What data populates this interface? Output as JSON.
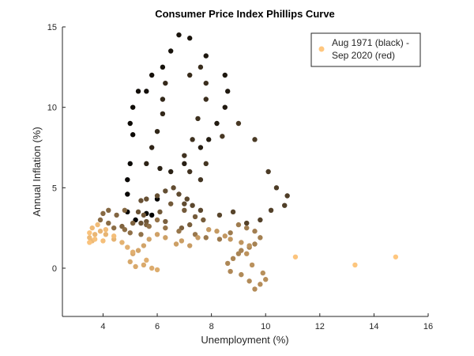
{
  "chart_data": {
    "type": "scatter",
    "title": "Consumer Price Index Phillips Curve",
    "xlabel": "Unemployment (%)",
    "ylabel": "Annual Inflation (%)",
    "xlim": [
      2.5,
      16
    ],
    "ylim": [
      -3,
      15
    ],
    "xticks": [
      4,
      6,
      8,
      10,
      12,
      14,
      16
    ],
    "xtick_labels": [
      "4",
      "6",
      "8",
      "10",
      "12",
      "14",
      "16"
    ],
    "yticks": [
      0,
      5,
      10,
      15
    ],
    "ytick_labels": [
      "0",
      "5",
      "10",
      "15"
    ],
    "grid": false,
    "legend_position": "top-right",
    "legend_label": "Aug 1971 (black) -\nSep 2020 (red)",
    "color_start": "#000000",
    "color_end": "#ffc77f",
    "series": [
      {
        "points": [
          [
            6.0,
            4.3
          ],
          [
            5.8,
            3.3
          ],
          [
            5.6,
            3.4
          ],
          [
            5.2,
            3.0
          ],
          [
            4.9,
            3.5
          ],
          [
            4.9,
            4.6
          ],
          [
            4.9,
            5.5
          ],
          [
            5.0,
            6.5
          ],
          [
            5.1,
            8.3
          ],
          [
            5.0,
            9.0
          ],
          [
            5.1,
            10.0
          ],
          [
            5.3,
            11.0
          ],
          [
            5.6,
            11.0
          ],
          [
            5.8,
            12.0
          ],
          [
            6.2,
            12.5
          ],
          [
            6.5,
            13.5
          ],
          [
            6.8,
            14.5
          ],
          [
            7.2,
            14.3
          ],
          [
            7.8,
            13.2
          ],
          [
            8.5,
            12.0
          ],
          [
            8.6,
            11.0
          ],
          [
            8.5,
            10.0
          ],
          [
            8.2,
            9.0
          ],
          [
            7.9,
            8.0
          ],
          [
            7.6,
            7.5
          ],
          [
            7.0,
            6.5
          ],
          [
            6.5,
            6.0
          ],
          [
            6.1,
            6.2
          ],
          [
            5.6,
            6.5
          ],
          [
            5.8,
            7.5
          ],
          [
            6.0,
            8.5
          ],
          [
            6.2,
            9.6
          ],
          [
            6.2,
            10.5
          ],
          [
            6.3,
            11.5
          ],
          [
            7.2,
            12.0
          ],
          [
            7.6,
            12.5
          ],
          [
            7.8,
            11.5
          ],
          [
            7.8,
            10.5
          ],
          [
            7.5,
            9.3
          ],
          [
            7.3,
            8.0
          ],
          [
            7.0,
            7.0
          ],
          [
            7.2,
            6.0
          ],
          [
            7.6,
            5.5
          ],
          [
            7.8,
            6.5
          ],
          [
            8.4,
            8.2
          ],
          [
            9.0,
            9.0
          ],
          [
            9.6,
            8.0
          ],
          [
            10.1,
            6.0
          ],
          [
            10.4,
            5.0
          ],
          [
            10.8,
            4.5
          ],
          [
            10.7,
            3.9
          ],
          [
            10.2,
            3.6
          ],
          [
            9.8,
            3.0
          ],
          [
            9.3,
            2.8
          ],
          [
            8.8,
            3.5
          ],
          [
            8.3,
            3.3
          ],
          [
            7.6,
            3.6
          ],
          [
            7.3,
            3.9
          ],
          [
            7.1,
            4.3
          ],
          [
            7.0,
            4.0
          ],
          [
            6.8,
            4.6
          ],
          [
            6.6,
            5.0
          ],
          [
            6.3,
            4.8
          ],
          [
            6.0,
            4.5
          ],
          [
            5.6,
            4.3
          ],
          [
            5.4,
            4.2
          ],
          [
            5.3,
            3.5
          ],
          [
            5.4,
            2.8
          ],
          [
            5.6,
            2.9
          ],
          [
            5.5,
            3.3
          ],
          [
            6.1,
            3.5
          ],
          [
            6.5,
            4.0
          ],
          [
            7.0,
            3.6
          ],
          [
            7.4,
            3.2
          ],
          [
            7.7,
            3.0
          ],
          [
            7.2,
            2.7
          ],
          [
            6.9,
            2.5
          ],
          [
            6.3,
            2.9
          ],
          [
            5.6,
            2.7
          ],
          [
            5.1,
            2.8
          ],
          [
            4.7,
            2.6
          ],
          [
            4.5,
            3.3
          ],
          [
            4.8,
            3.6
          ],
          [
            4.2,
            3.6
          ],
          [
            4.0,
            3.4
          ],
          [
            3.9,
            3.0
          ],
          [
            4.2,
            2.8
          ],
          [
            4.4,
            2.5
          ],
          [
            4.8,
            2.4
          ],
          [
            5.0,
            2.2
          ],
          [
            5.4,
            2.1
          ],
          [
            5.7,
            2.6
          ],
          [
            6.0,
            3.0
          ],
          [
            6.3,
            2.5
          ],
          [
            6.8,
            2.3
          ],
          [
            7.4,
            2.1
          ],
          [
            7.8,
            1.9
          ],
          [
            8.3,
            1.8
          ],
          [
            8.7,
            2.2
          ],
          [
            9.0,
            2.7
          ],
          [
            9.3,
            2.5
          ],
          [
            9.6,
            2.3
          ],
          [
            9.8,
            1.9
          ],
          [
            9.6,
            1.5
          ],
          [
            9.4,
            1.3
          ],
          [
            9.1,
            1.1
          ],
          [
            9.0,
            0.9
          ],
          [
            8.8,
            0.6
          ],
          [
            8.6,
            0.3
          ],
          [
            8.7,
            -0.2
          ],
          [
            9.1,
            -0.4
          ],
          [
            9.4,
            -0.8
          ],
          [
            9.6,
            -1.3
          ],
          [
            9.8,
            -1.0
          ],
          [
            10.0,
            -0.7
          ],
          [
            9.9,
            -0.3
          ],
          [
            9.5,
            0.2
          ],
          [
            9.3,
            0.9
          ],
          [
            9.4,
            1.4
          ],
          [
            9.1,
            1.6
          ],
          [
            8.7,
            1.8
          ],
          [
            8.5,
            2.0
          ],
          [
            8.2,
            2.3
          ],
          [
            7.9,
            2.4
          ],
          [
            7.5,
            1.9
          ],
          [
            7.2,
            1.4
          ],
          [
            6.9,
            1.7
          ],
          [
            6.7,
            1.5
          ],
          [
            6.3,
            1.9
          ],
          [
            6.0,
            2.1
          ],
          [
            5.7,
            1.8
          ],
          [
            5.5,
            1.4
          ],
          [
            5.3,
            1.1
          ],
          [
            5.1,
            0.9
          ],
          [
            5.0,
            0.4
          ],
          [
            5.2,
            0.1
          ],
          [
            5.5,
            0.2
          ],
          [
            5.8,
            0.0
          ],
          [
            6.0,
            -0.1
          ],
          [
            5.6,
            0.5
          ],
          [
            5.1,
            1.0
          ],
          [
            4.9,
            1.3
          ],
          [
            4.7,
            1.6
          ],
          [
            4.4,
            1.8
          ],
          [
            4.1,
            2.1
          ],
          [
            3.9,
            2.3
          ],
          [
            3.7,
            2.1
          ],
          [
            3.6,
            1.7
          ],
          [
            3.5,
            1.9
          ],
          [
            3.6,
            2.5
          ],
          [
            3.8,
            2.7
          ],
          [
            4.1,
            2.4
          ],
          [
            4.4,
            2.0
          ],
          [
            4.0,
            1.7
          ],
          [
            3.7,
            1.8
          ],
          [
            3.5,
            2.2
          ],
          [
            3.5,
            1.6
          ],
          [
            11.1,
            0.7
          ],
          [
            13.3,
            0.2
          ],
          [
            14.8,
            0.7
          ]
        ]
      }
    ]
  }
}
